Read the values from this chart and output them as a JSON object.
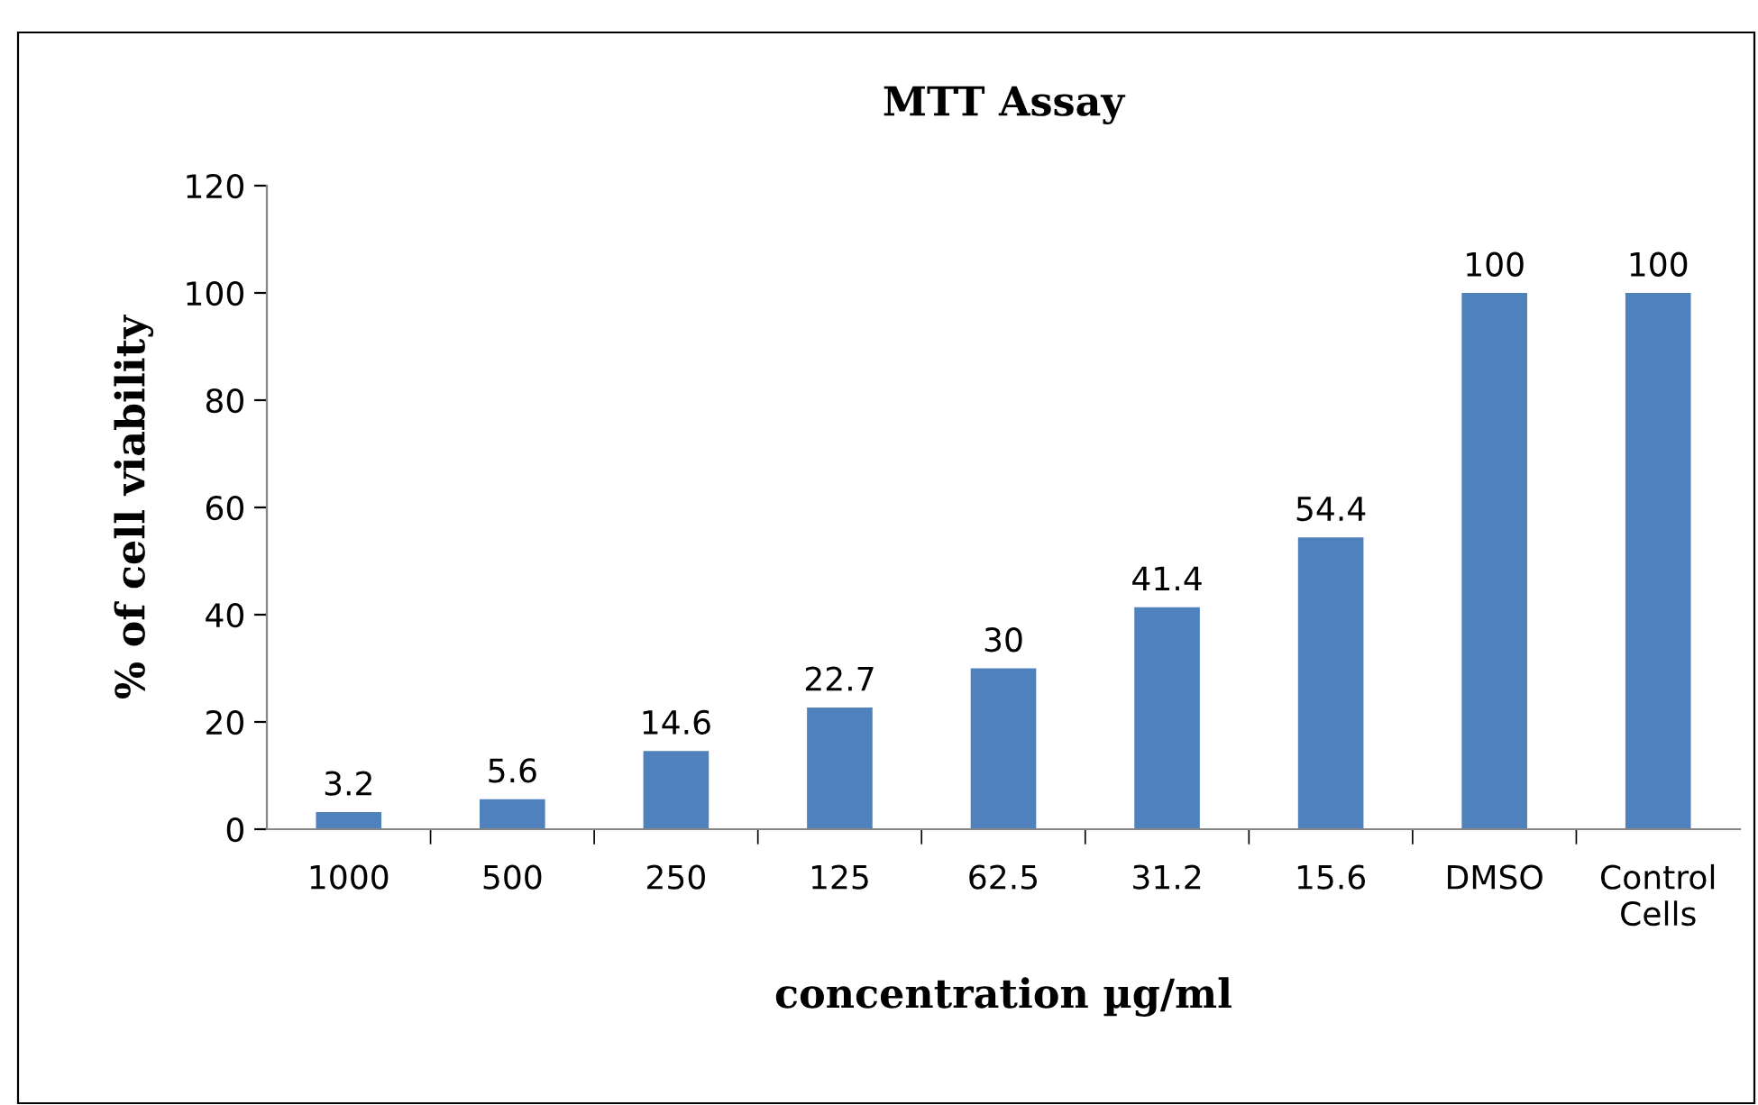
{
  "chart_data": {
    "type": "bar",
    "title": "MTT Assay",
    "xlabel": "concentration µg/ml",
    "ylabel": "% of cell viability",
    "categories": [
      "1000",
      "500",
      "250",
      "125",
      "62.5",
      "31.2",
      "15.6",
      "DMSO",
      "Control\nCells"
    ],
    "values": [
      3.2,
      5.6,
      14.6,
      22.7,
      30,
      41.4,
      54.4,
      100,
      100
    ],
    "color": "#4f81bd",
    "ylim": [
      0,
      120
    ],
    "yticks": [
      0,
      20,
      40,
      60,
      80,
      100,
      120
    ],
    "grid": false,
    "data_labels": true
  }
}
